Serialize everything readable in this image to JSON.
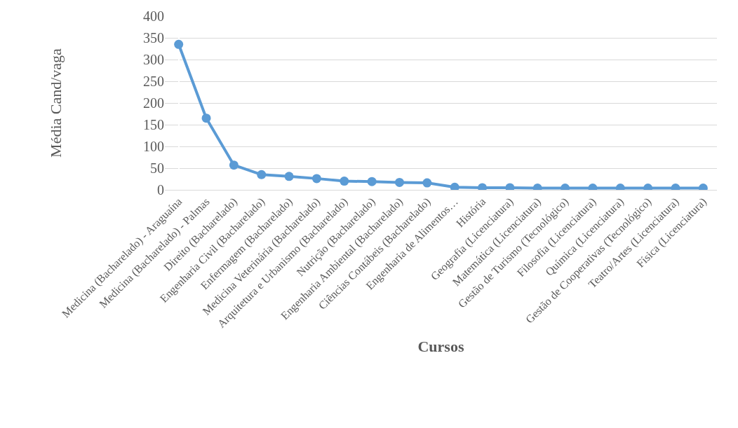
{
  "chart_data": {
    "type": "line",
    "xlabel": "Cursos",
    "ylabel": "Média Cand/vaga",
    "categories": [
      "Medicina (Bacharelado) - Araguaína",
      "Medicina (Bacharelado) - Palmas",
      "Direito (Bacharelado)",
      "Engenharia Civil (Bacharelado)",
      "Enfermagem (Bacharelado)",
      "Medicina Veterinária (Bacharelado)",
      "Arquitetura e Urbanismo (Bacharelado)",
      "Nutrição (Bacharelado)",
      "Engenharia Ambiental (Bacharelado)",
      "Ciências Contábeis (Bacharelado)",
      "Engenharia de Alimentos…",
      "História",
      "Geografia (Licenciatura)",
      "Matemática (Licenciatura)",
      "Gestão de Turismo (Tecnológico)",
      "Filosofia (Licenciatura)",
      "Química (Licenciatura)",
      "Gestão de Cooperativas (Tecnológico)",
      "Teatro/Artes (Licenciatura)",
      "Física (Licenciatura)"
    ],
    "series": [
      {
        "color": "#5b9bd5",
        "values": [
          335,
          165,
          57,
          35,
          31,
          26,
          20,
          19,
          17,
          16,
          6,
          5,
          5,
          4,
          4,
          4,
          4,
          4,
          4,
          4
        ]
      }
    ],
    "ylim": [
      0,
      400
    ],
    "yticks": [
      0,
      50,
      100,
      150,
      200,
      250,
      300,
      350,
      400
    ],
    "grid": "y",
    "legend": false,
    "marker": "circle",
    "line_style": "solid"
  }
}
